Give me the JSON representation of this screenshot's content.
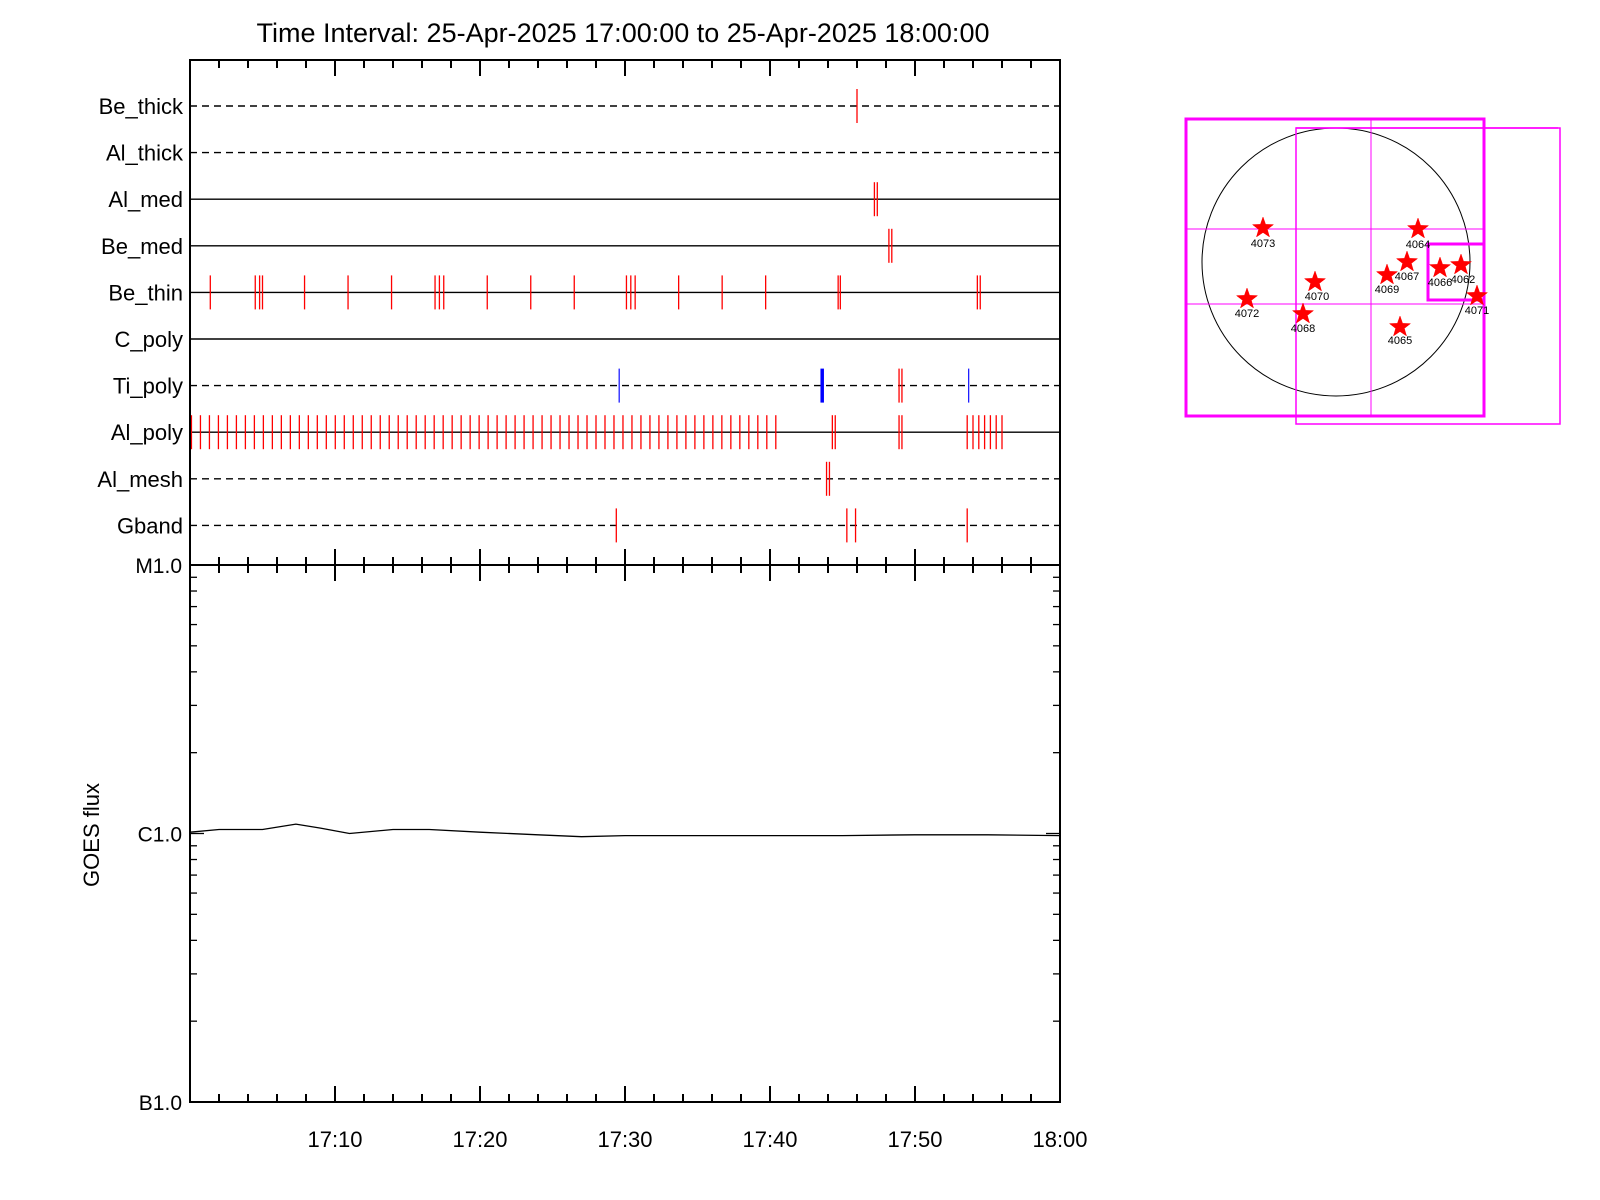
{
  "chart_data": {
    "type": "line",
    "title": "Time Interval: 25-Apr-2025 17:00:00 to 25-Apr-2025 18:00:00",
    "timeline": {
      "x_unit": "minutes after 17:00",
      "xlim": [
        0,
        60
      ],
      "channels": [
        {
          "name": "Be_thick",
          "line": "dashed",
          "marks": [
            {
              "t": 46.0,
              "color": "#ff0000"
            }
          ]
        },
        {
          "name": "Al_thick",
          "line": "dashed",
          "marks": []
        },
        {
          "name": "Al_med",
          "line": "solid",
          "marks": [
            {
              "t": 47.2,
              "color": "#ff0000"
            },
            {
              "t": 47.4,
              "color": "#ff0000"
            }
          ]
        },
        {
          "name": "Be_med",
          "line": "solid",
          "marks": [
            {
              "t": 48.2,
              "color": "#ff0000"
            },
            {
              "t": 48.4,
              "color": "#ff0000"
            }
          ]
        },
        {
          "name": "Be_thin",
          "line": "solid",
          "marks": [
            {
              "t": 1.4,
              "color": "#ff0000"
            },
            {
              "t": 4.5,
              "color": "#ff0000"
            },
            {
              "t": 4.8,
              "color": "#ff0000"
            },
            {
              "t": 5.0,
              "color": "#ff0000"
            },
            {
              "t": 7.9,
              "color": "#ff0000"
            },
            {
              "t": 10.9,
              "color": "#ff0000"
            },
            {
              "t": 13.9,
              "color": "#ff0000"
            },
            {
              "t": 16.9,
              "color": "#ff0000"
            },
            {
              "t": 17.2,
              "color": "#ff0000"
            },
            {
              "t": 17.5,
              "color": "#ff0000"
            },
            {
              "t": 20.5,
              "color": "#ff0000"
            },
            {
              "t": 23.5,
              "color": "#ff0000"
            },
            {
              "t": 26.5,
              "color": "#ff0000"
            },
            {
              "t": 30.1,
              "color": "#ff0000"
            },
            {
              "t": 30.4,
              "color": "#ff0000"
            },
            {
              "t": 30.7,
              "color": "#ff0000"
            },
            {
              "t": 33.7,
              "color": "#ff0000"
            },
            {
              "t": 36.7,
              "color": "#ff0000"
            },
            {
              "t": 39.7,
              "color": "#ff0000"
            },
            {
              "t": 44.7,
              "color": "#ff0000"
            },
            {
              "t": 44.85,
              "color": "#ff0000"
            },
            {
              "t": 54.3,
              "color": "#ff0000"
            },
            {
              "t": 54.5,
              "color": "#ff0000"
            }
          ]
        },
        {
          "name": "C_poly",
          "line": "solid",
          "marks": []
        },
        {
          "name": "Ti_poly",
          "line": "dashed",
          "marks": [
            {
              "t": 29.6,
              "color": "#2020ff"
            },
            {
              "t": 43.6,
              "color": "#0000ff",
              "heavy": true
            },
            {
              "t": 48.9,
              "color": "#ff0000"
            },
            {
              "t": 49.1,
              "color": "#ff0000"
            },
            {
              "t": 53.7,
              "color": "#2020ff"
            }
          ]
        },
        {
          "name": "Al_poly",
          "line": "solid",
          "marks_every": {
            "from": 0.1,
            "to": 40.4,
            "step": 0.62,
            "color": "#ff0000"
          },
          "marks": [
            {
              "t": 44.3,
              "color": "#ff0000"
            },
            {
              "t": 44.5,
              "color": "#ff0000"
            },
            {
              "t": 48.9,
              "color": "#ff0000"
            },
            {
              "t": 49.1,
              "color": "#ff0000"
            },
            {
              "t": 53.6,
              "color": "#ff0000"
            },
            {
              "t": 54.0,
              "color": "#ff0000"
            },
            {
              "t": 54.4,
              "color": "#ff0000"
            },
            {
              "t": 54.8,
              "color": "#ff0000"
            },
            {
              "t": 55.2,
              "color": "#ff0000"
            },
            {
              "t": 55.6,
              "color": "#ff0000"
            },
            {
              "t": 56.0,
              "color": "#ff0000"
            }
          ]
        },
        {
          "name": "Al_mesh",
          "line": "dashed",
          "marks": [
            {
              "t": 43.9,
              "color": "#ff0000"
            },
            {
              "t": 44.1,
              "color": "#ff0000"
            }
          ]
        },
        {
          "name": "Gband",
          "line": "dashed",
          "marks": [
            {
              "t": 29.4,
              "color": "#ff0000"
            },
            {
              "t": 45.3,
              "color": "#ff0000"
            },
            {
              "t": 45.9,
              "color": "#ff0000"
            },
            {
              "t": 53.6,
              "color": "#ff0000"
            }
          ]
        }
      ]
    },
    "goes": {
      "ylabel": "GOES flux",
      "y_log_decades": [
        "B1.0",
        "C1.0",
        "M1.0"
      ],
      "ylim_log": [
        -7,
        -5
      ],
      "x_ticks": [
        "17:10",
        "17:20",
        "17:30",
        "17:40",
        "17:50",
        "18:00"
      ],
      "series": {
        "x": [
          0,
          2,
          5,
          7.3,
          9,
          11,
          14,
          16.5,
          20,
          24,
          27,
          30,
          35,
          40,
          45,
          50,
          55,
          60
        ],
        "y": [
          -5.995,
          -5.985,
          -5.985,
          -5.965,
          -5.98,
          -6.0,
          -5.985,
          -5.985,
          -5.995,
          -6.005,
          -6.012,
          -6.008,
          -6.008,
          -6.008,
          -6.008,
          -6.005,
          -6.005,
          -6.008
        ]
      }
    },
    "sun_map": {
      "regions": [
        "4073",
        "4064",
        "4067",
        "4066",
        "4062",
        "4069",
        "4070",
        "4072",
        "4068",
        "4071",
        "4065"
      ]
    }
  }
}
